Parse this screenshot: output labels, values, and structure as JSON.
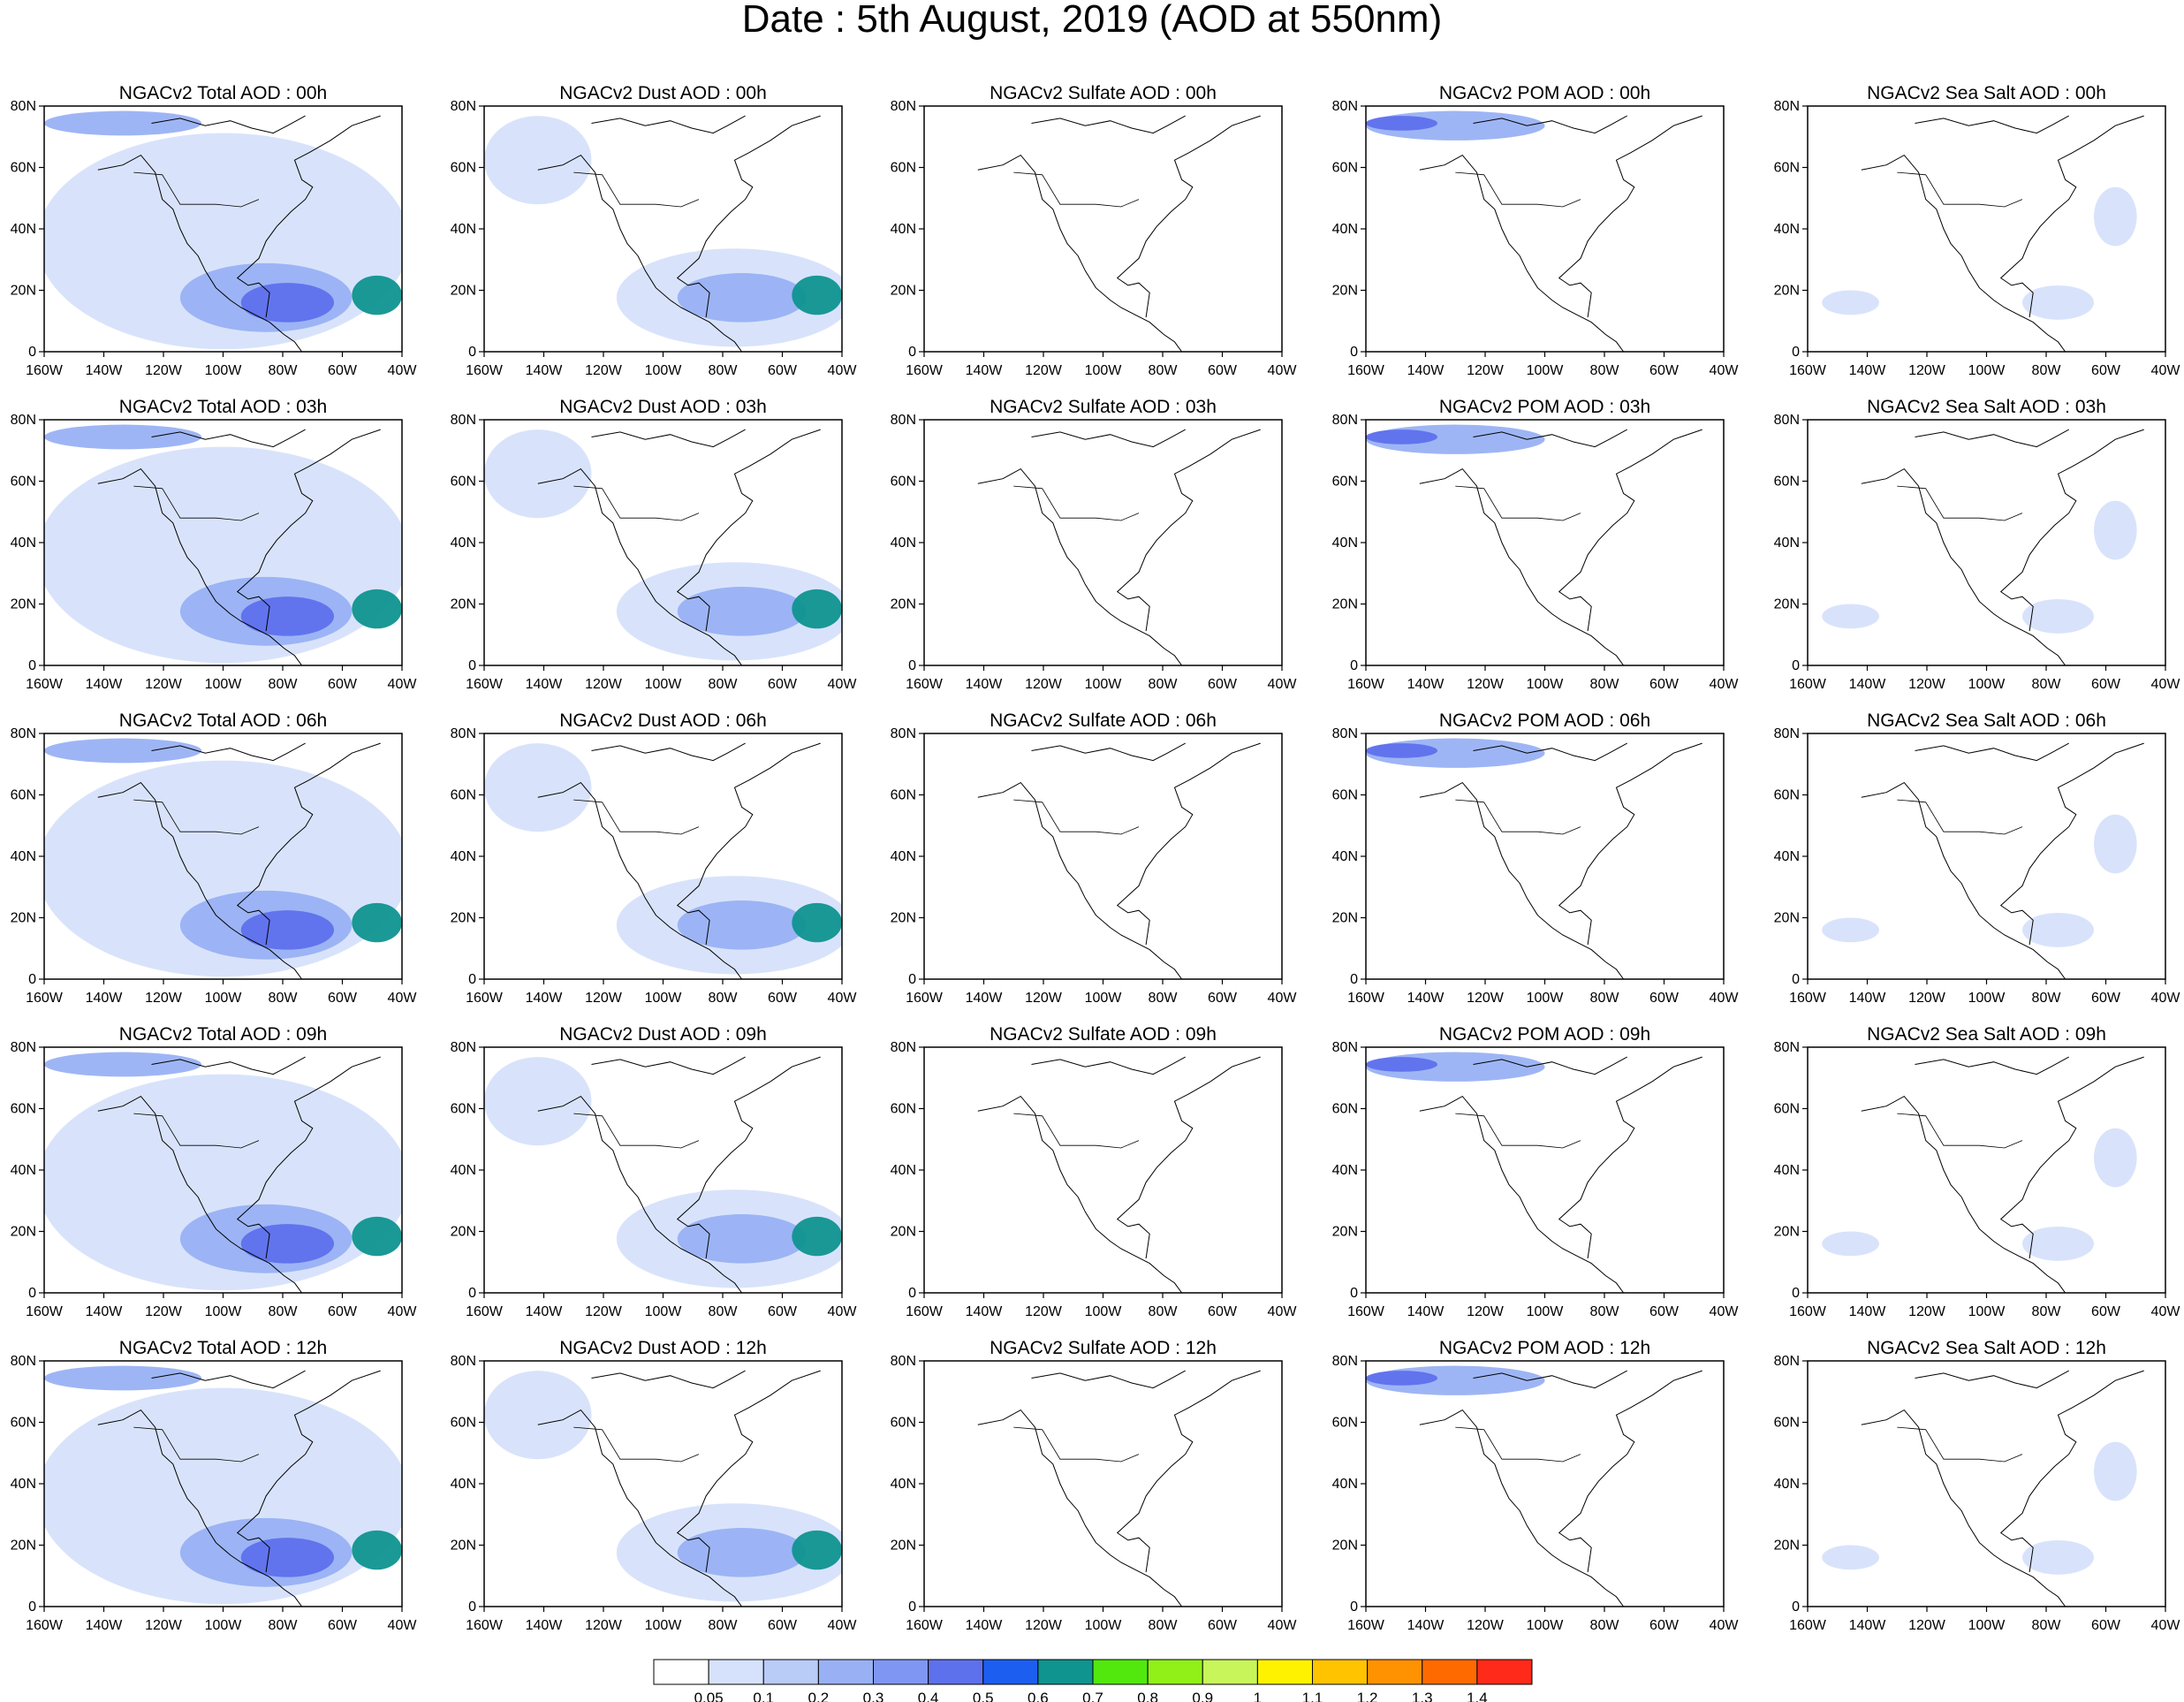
{
  "title": "Date : 5th August, 2019 (AOD at 550nm)",
  "axes": {
    "lon_ticks": [
      "160W",
      "140W",
      "120W",
      "100W",
      "80W",
      "60W",
      "40W"
    ],
    "lat_ticks": [
      "0",
      "20N",
      "40N",
      "60N",
      "80N"
    ],
    "lon_range": [
      -160,
      -40
    ],
    "lat_range": [
      0,
      80
    ]
  },
  "columns": [
    {
      "id": "total",
      "field": "Total AOD"
    },
    {
      "id": "dust",
      "field": "Dust AOD"
    },
    {
      "id": "sulfate",
      "field": "Sulfate AOD"
    },
    {
      "id": "pom",
      "field": "POM AOD"
    },
    {
      "id": "seasalt",
      "field": "Sea Salt AOD"
    }
  ],
  "panel_titles": [
    [
      "NGACv2 Total AOD : 00h",
      "NGACv2 Dust AOD : 00h",
      "NGACv2 Sulfate AOD : 00h",
      "NGACv2 POM AOD : 00h",
      "NGACv2 Sea Salt AOD : 00h"
    ],
    [
      "NGACv2 Total AOD : 03h",
      "NGACv2 Dust AOD : 03h",
      "NGACv2 Sulfate AOD : 03h",
      "NGACv2 POM AOD : 03h",
      "NGACv2 Sea Salt AOD : 03h"
    ],
    [
      "NGACv2 Total AOD : 06h",
      "NGACv2 Dust AOD : 06h",
      "NGACv2 Sulfate AOD : 06h",
      "NGACv2 POM AOD : 06h",
      "NGACv2 Sea Salt AOD : 06h"
    ],
    [
      "NGACv2 Total AOD : 09h",
      "NGACv2 Dust AOD : 09h",
      "NGACv2 Sulfate AOD : 09h",
      "NGACv2 POM AOD : 09h",
      "NGACv2 Sea Salt  AOD : 09h"
    ],
    [
      "NGACv2 Total AOD  : 12h",
      "NGACv2 Dust AOD : 12h",
      "NGACv2 Sulfate AOD : 12h",
      "NGACv2 POM  AOD : 12h",
      "NGACv2 Sea Salt  AOD : 12h"
    ]
  ],
  "colorbar": {
    "labels": [
      "0.05",
      "0.1",
      "0.2",
      "0.3",
      "0.4",
      "0.5",
      "0.6",
      "0.7",
      "0.8",
      "0.9",
      "1",
      "1.1",
      "1.2",
      "1.3",
      "1.4"
    ],
    "colors": [
      "#ffffff",
      "#d6e2fb",
      "#b9cbf7",
      "#99b1f4",
      "#7f97f2",
      "#5e71ec",
      "#1c5ef0",
      "#0f9490",
      "#52e80e",
      "#90f018",
      "#c8f55a",
      "#fff200",
      "#ffc300",
      "#ff9200",
      "#ff6a00",
      "#ff2a1a"
    ]
  },
  "colors": {
    "background": "#ffffff",
    "coastline": "#000000",
    "aod_low": "#d6e2fb",
    "aod_mid": "#99b1f4",
    "aod_high": "#5e71ec",
    "aod_peak": "#0f9490"
  }
}
